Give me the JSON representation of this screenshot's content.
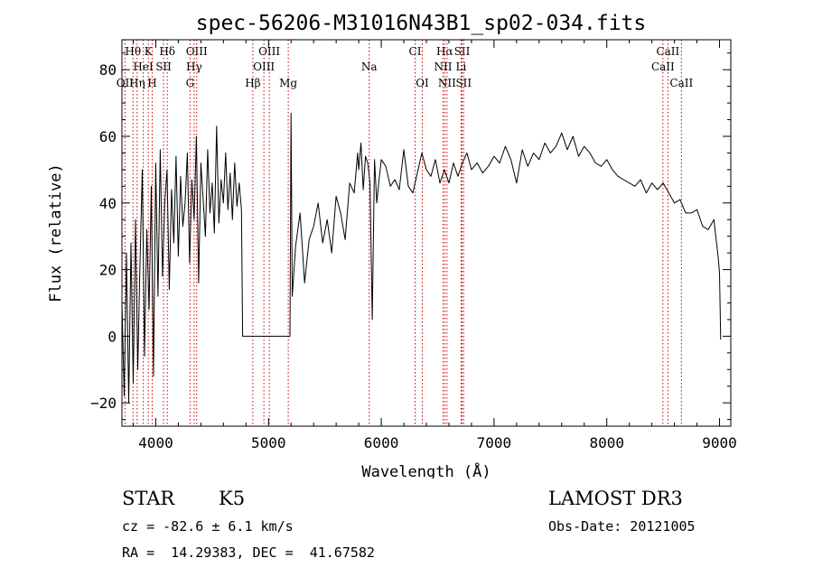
{
  "chart_data": {
    "type": "line",
    "title": "spec-56206-M31016N43B1_sp02-034.fits",
    "xlabel": "Wavelength (Å)",
    "ylabel": "Flux (relative)",
    "xlim": [
      3700,
      9100
    ],
    "ylim": [
      -27,
      89
    ],
    "x_ticks": [
      4000,
      5000,
      6000,
      7000,
      8000,
      9000
    ],
    "y_ticks": [
      -20,
      0,
      20,
      40,
      60,
      80
    ],
    "grid": false,
    "spectrum": {
      "name": "flux",
      "x": [
        3700,
        3720,
        3740,
        3760,
        3780,
        3800,
        3820,
        3840,
        3860,
        3880,
        3900,
        3920,
        3940,
        3960,
        3980,
        4000,
        4020,
        4040,
        4060,
        4080,
        4100,
        4120,
        4140,
        4160,
        4180,
        4200,
        4220,
        4240,
        4260,
        4280,
        4300,
        4320,
        4340,
        4360,
        4380,
        4400,
        4420,
        4440,
        4460,
        4480,
        4500,
        4520,
        4540,
        4560,
        4580,
        4600,
        4620,
        4640,
        4660,
        4680,
        4700,
        4720,
        4740,
        4760,
        4770,
        4800,
        4900,
        5000,
        5100,
        5190,
        5200,
        5210,
        5240,
        5280,
        5320,
        5360,
        5400,
        5440,
        5480,
        5520,
        5560,
        5600,
        5640,
        5680,
        5720,
        5760,
        5790,
        5800,
        5820,
        5840,
        5860,
        5880,
        5900,
        5920,
        5940,
        5960,
        5980,
        6000,
        6040,
        6080,
        6120,
        6160,
        6200,
        6240,
        6280,
        6320,
        6360,
        6400,
        6440,
        6480,
        6520,
        6560,
        6600,
        6640,
        6680,
        6720,
        6760,
        6800,
        6850,
        6900,
        6950,
        7000,
        7050,
        7100,
        7150,
        7200,
        7250,
        7300,
        7350,
        7400,
        7450,
        7500,
        7550,
        7600,
        7650,
        7700,
        7750,
        7800,
        7850,
        7900,
        7950,
        8000,
        8050,
        8100,
        8150,
        8200,
        8250,
        8300,
        8350,
        8400,
        8450,
        8500,
        8550,
        8600,
        8650,
        8700,
        8750,
        8800,
        8850,
        8900,
        8950,
        8990,
        9000,
        9010
      ],
      "y": [
        10,
        -18,
        25,
        -20,
        28,
        -14,
        35,
        -10,
        22,
        50,
        -6,
        32,
        8,
        45,
        -12,
        52,
        12,
        56,
        18,
        40,
        50,
        14,
        44,
        28,
        54,
        24,
        48,
        33,
        40,
        55,
        22,
        47,
        35,
        60,
        16,
        52,
        41,
        30,
        56,
        37,
        46,
        31,
        63,
        34,
        47,
        40,
        55,
        38,
        49,
        35,
        52,
        39,
        46,
        38,
        0,
        0,
        0,
        0,
        0,
        0,
        67,
        12,
        27,
        37,
        16,
        29,
        33,
        40,
        28,
        35,
        25,
        42,
        37,
        29,
        46,
        43,
        55,
        50,
        58,
        44,
        54,
        52,
        46,
        5,
        53,
        40,
        47,
        53,
        51,
        45,
        47,
        44,
        56,
        45,
        43,
        49,
        55,
        50,
        48,
        53,
        46,
        50,
        46,
        52,
        48,
        52,
        55,
        50,
        52,
        49,
        51,
        54,
        52,
        57,
        53,
        46,
        56,
        51,
        55,
        53,
        58,
        55,
        57,
        61,
        56,
        60,
        54,
        57,
        55,
        52,
        51,
        53,
        50,
        48,
        47,
        46,
        45,
        47,
        43,
        46,
        44,
        46,
        43,
        40,
        41,
        37,
        37,
        38,
        33,
        32,
        35,
        23,
        19,
        -1
      ]
    },
    "emission_lines": [
      {
        "label": "Hθ",
        "wave": 3798,
        "row": 1
      },
      {
        "label": "K",
        "wave": 3934,
        "row": 1
      },
      {
        "label": "Hδ",
        "wave": 4102,
        "row": 1
      },
      {
        "label": "OIII",
        "wave": 4363,
        "row": 1
      },
      {
        "label": "OIII",
        "wave": 5007,
        "row": 1
      },
      {
        "label": "CI",
        "wave": 6300,
        "row": 1
      },
      {
        "label": "Hα",
        "wave": 6563,
        "row": 1
      },
      {
        "label": "SII",
        "wave": 6717,
        "row": 1
      },
      {
        "label": "CaII",
        "wave": 8542,
        "row": 1
      },
      {
        "label": "HeI",
        "wave": 3889,
        "row": 2
      },
      {
        "label": "SII",
        "wave": 4069,
        "row": 2
      },
      {
        "label": "Hγ",
        "wave": 4340,
        "row": 2
      },
      {
        "label": "OIII",
        "wave": 4959,
        "row": 2
      },
      {
        "label": "Na",
        "wave": 5893,
        "row": 2
      },
      {
        "label": "NII",
        "wave": 6548,
        "row": 2
      },
      {
        "label": "Li",
        "wave": 6708,
        "row": 2
      },
      {
        "label": "CaII",
        "wave": 8498,
        "row": 2
      },
      {
        "label": "OII",
        "wave": 3727,
        "row": 3
      },
      {
        "label": "Hη",
        "wave": 3835,
        "row": 3
      },
      {
        "label": "H",
        "wave": 3968,
        "row": 3
      },
      {
        "label": "G",
        "wave": 4304,
        "row": 3
      },
      {
        "label": "Hβ",
        "wave": 4861,
        "row": 3
      },
      {
        "label": "Mg",
        "wave": 5175,
        "row": 3
      },
      {
        "label": "OI",
        "wave": 6364,
        "row": 3
      },
      {
        "label": "NII",
        "wave": 6583,
        "row": 3
      },
      {
        "label": "SII",
        "wave": 6731,
        "row": 3
      },
      {
        "label": "CaII",
        "wave": 8662,
        "row": 3
      }
    ]
  },
  "info": {
    "class_label": "STAR",
    "subclass": "K5",
    "survey": "LAMOST DR3",
    "redshift": "cz = -82.6 ± 6.1 km/s",
    "obs_date": "Obs-Date: 20121005",
    "coords": "RA =  14.29383, DEC =  41.67582"
  },
  "colors": {
    "spectrum": "#000000",
    "line_marker": "#cc0000"
  }
}
